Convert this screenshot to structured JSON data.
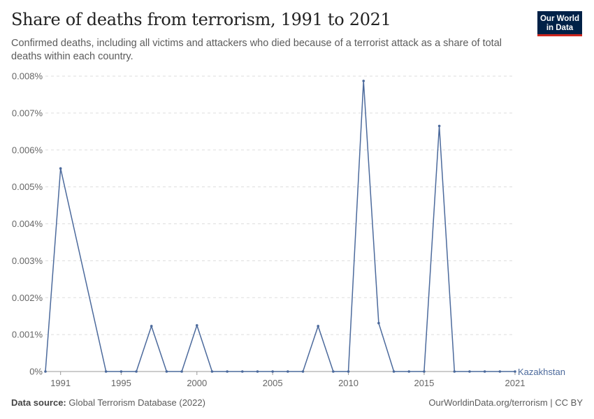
{
  "header": {
    "title": "Share of deaths from terrorism, 1991 to 2021",
    "subtitle": "Confirmed deaths, including all victims and attackers who died because of a terrorist attack as a share of total deaths within each country."
  },
  "logo": {
    "line1": "Our World",
    "line2": "in Data",
    "bg_color": "#002147",
    "accent_color": "#ce261e"
  },
  "footer": {
    "source_label": "Data source:",
    "source_text": "Global Terrorism Database (2022)",
    "right_text": "OurWorldinData.org/terrorism | CC BY"
  },
  "chart_data": {
    "type": "line",
    "title": "Share of deaths from terrorism, 1991 to 2021",
    "xlabel": "",
    "ylabel": "",
    "xlim": [
      1990,
      2021
    ],
    "ylim": [
      0,
      0.008
    ],
    "x_ticks": [
      1991,
      1995,
      2000,
      2005,
      2010,
      2015,
      2021
    ],
    "y_ticks": [
      0,
      0.001,
      0.002,
      0.003,
      0.004,
      0.005,
      0.006,
      0.007,
      0.008
    ],
    "y_tick_labels": [
      "0%",
      "0.001%",
      "0.002%",
      "0.003%",
      "0.004%",
      "0.005%",
      "0.006%",
      "0.007%",
      "0.008%"
    ],
    "grid": "horizontal-dashed",
    "series": [
      {
        "name": "Kazakhstan",
        "color": "#4c6a9c",
        "x": [
          1990,
          1991,
          1994,
          1995,
          1996,
          1997,
          1998,
          1999,
          2000,
          2001,
          2002,
          2003,
          2004,
          2005,
          2006,
          2007,
          2008,
          2009,
          2010,
          2011,
          2012,
          2013,
          2014,
          2015,
          2016,
          2017,
          2018,
          2019,
          2020,
          2021
        ],
        "y": [
          0,
          0.0055,
          0,
          0,
          0,
          0.00123,
          0,
          0,
          0.00125,
          0,
          0,
          0,
          0,
          0,
          0,
          0,
          0.00123,
          0,
          0,
          0.00787,
          0.00131,
          0,
          0,
          0,
          0.00665,
          0,
          0,
          0,
          0,
          0
        ]
      }
    ]
  }
}
